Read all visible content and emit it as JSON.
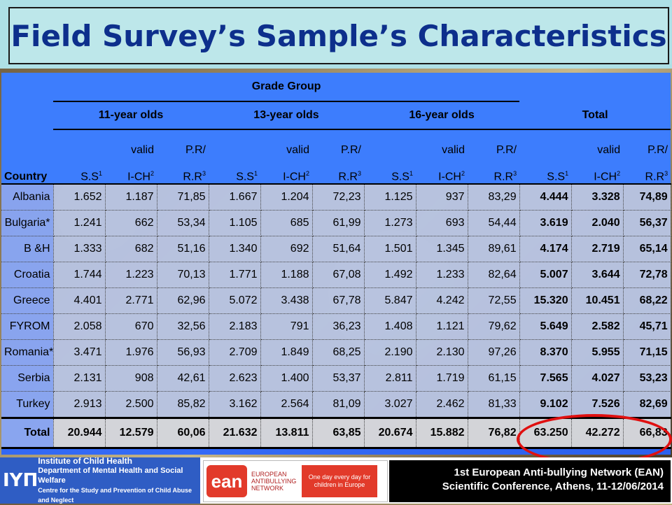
{
  "title": "Field Survey’s Sample’s Characteristics",
  "table": {
    "country_header": "Country",
    "grade_group_header": "Grade Group",
    "groups": [
      "11-year olds",
      "13-year olds",
      "16-year olds"
    ],
    "total_header": "Total",
    "col_headers": {
      "ss": "S.S",
      "ss_sup": "1",
      "valid": "valid",
      "ich": "I-CH",
      "ich_sup": "2",
      "pr": "P.R/",
      "rr": "R.R",
      "rr_sup": "3"
    },
    "rows": [
      {
        "country": "Albania",
        "values": [
          "1.652",
          "1.187",
          "71,85",
          "1.667",
          "1.204",
          "72,23",
          "1.125",
          "937",
          "83,29",
          "4.444",
          "3.328",
          "74,89"
        ]
      },
      {
        "country": "Bulgaria*",
        "values": [
          "1.241",
          "662",
          "53,34",
          "1.105",
          "685",
          "61,99",
          "1.273",
          "693",
          "54,44",
          "3.619",
          "2.040",
          "56,37"
        ]
      },
      {
        "country": "B &H",
        "values": [
          "1.333",
          "682",
          "51,16",
          "1.340",
          "692",
          "51,64",
          "1.501",
          "1.345",
          "89,61",
          "4.174",
          "2.719",
          "65,14"
        ]
      },
      {
        "country": "Croatia",
        "values": [
          "1.744",
          "1.223",
          "70,13",
          "1.771",
          "1.188",
          "67,08",
          "1.492",
          "1.233",
          "82,64",
          "5.007",
          "3.644",
          "72,78"
        ]
      },
      {
        "country": "Greece",
        "values": [
          "4.401",
          "2.771",
          "62,96",
          "5.072",
          "3.438",
          "67,78",
          "5.847",
          "4.242",
          "72,55",
          "15.320",
          "10.451",
          "68,22"
        ]
      },
      {
        "country": "FYROM",
        "values": [
          "2.058",
          "670",
          "32,56",
          "2.183",
          "791",
          "36,23",
          "1.408",
          "1.121",
          "79,62",
          "5.649",
          "2.582",
          "45,71"
        ]
      },
      {
        "country": "Romania*",
        "values": [
          "3.471",
          "1.976",
          "56,93",
          "2.709",
          "1.849",
          "68,25",
          "2.190",
          "2.130",
          "97,26",
          "8.370",
          "5.955",
          "71,15"
        ]
      },
      {
        "country": "Serbia",
        "values": [
          "2.131",
          "908",
          "42,61",
          "2.623",
          "1.400",
          "53,37",
          "2.811",
          "1.719",
          "61,15",
          "7.565",
          "4.027",
          "53,23"
        ]
      },
      {
        "country": "Turkey",
        "values": [
          "2.913",
          "2.500",
          "85,82",
          "3.162",
          "2.564",
          "81,09",
          "3.027",
          "2.462",
          "81,33",
          "9.102",
          "7.526",
          "82,69"
        ]
      }
    ],
    "total_row": {
      "country": "Total",
      "values": [
        "20.944",
        "12.579",
        "60,06",
        "21.632",
        "13.811",
        "63,85",
        "20.674",
        "15.882",
        "76,82",
        "63.250",
        "42.272",
        "66,83"
      ]
    }
  },
  "footer": {
    "ich_logo": "IYΠ",
    "ich_line1": "Institute of Child Health",
    "ich_line2": "Department of Mental Health and Social Welfare",
    "ich_line3": "Centre for the Study and Prevention of Child Abuse and Neglect",
    "ean_logo": "ean",
    "ean_name": "EUROPEAN ANTIBULLYING NETWORK",
    "ean_tag": "One day every day for children in Europe",
    "conf_line1": "1st European Anti-bullying Network (EAN)",
    "conf_line2": "Scientific Conference, Athens, 11-12/06/2014"
  },
  "colors": {
    "title_text": "#0d2f8c",
    "title_bg": "#bde7ea",
    "table_header": "#3d7dfd",
    "highlight": "#e01010"
  }
}
